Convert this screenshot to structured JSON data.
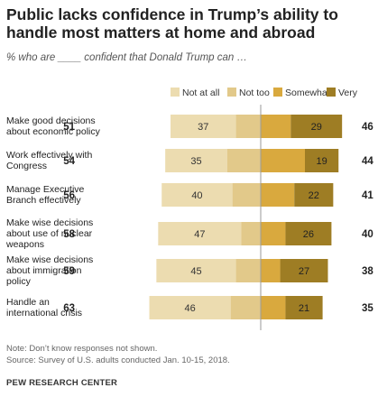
{
  "title": "Public lacks confidence in Trump’s ability to handle most matters at home and abroad",
  "subtitle": "% who are ____ confident that Donald Trump can …",
  "legend": [
    {
      "label": "Not at all",
      "color": "#ecdcb0"
    },
    {
      "label": "Not too",
      "color": "#e2c98a"
    },
    {
      "label": "Somewhat",
      "color": "#d9a93e"
    },
    {
      "label": "Very",
      "color": "#9e7d24"
    }
  ],
  "chart_data": {
    "type": "bar",
    "orientation": "horizontal",
    "stacked": "diverging",
    "categories": [
      "Make good decisions about economic policy",
      "Work effectively with Congress",
      "Manage Executive Branch effectively",
      "Make wise decisions about use of nuclear weapons",
      "Make wise decisions about immigration policy",
      "Handle an international crisis"
    ],
    "category_lines": [
      [
        "Make good decisions",
        "about economic policy"
      ],
      [
        "Work effectively with",
        "Congress"
      ],
      [
        "Manage Executive",
        "Branch effectively"
      ],
      [
        "Make wise decisions",
        "about use of nuclear",
        "weapons"
      ],
      [
        "Make wise decisions",
        "about immigration",
        "policy"
      ],
      [
        "Handle an",
        "international crisis"
      ]
    ],
    "series": [
      {
        "name": "Not at all",
        "values": [
          37,
          35,
          40,
          47,
          45,
          46
        ]
      },
      {
        "name": "Not too",
        "values": [
          14,
          19,
          16,
          11,
          14,
          17
        ]
      },
      {
        "name": "Somewhat",
        "values": [
          17,
          25,
          19,
          14,
          11,
          14
        ]
      },
      {
        "name": "Very",
        "values": [
          29,
          19,
          22,
          26,
          27,
          21
        ]
      }
    ],
    "labeled": {
      "Not at all": [
        37,
        35,
        40,
        47,
        45,
        46
      ],
      "Very": [
        29,
        19,
        22,
        26,
        27,
        21
      ]
    },
    "net_not_confident": [
      51,
      54,
      56,
      58,
      59,
      63
    ],
    "net_confident": [
      46,
      44,
      41,
      40,
      38,
      35
    ]
  },
  "notes": {
    "note": "Note: Don’t know responses not shown.",
    "source": "Source: Survey of U.S. adults conducted Jan. 10-15, 2018.",
    "brand": "PEW RESEARCH CENTER"
  }
}
